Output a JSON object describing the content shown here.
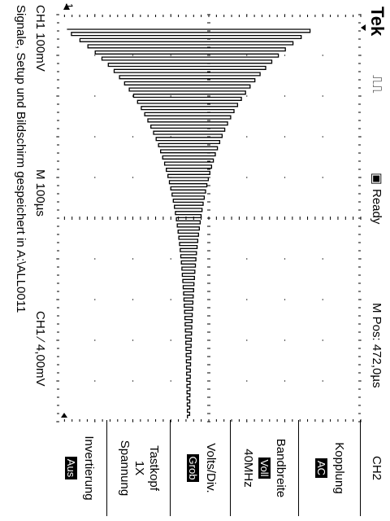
{
  "status": {
    "brand": "Tek",
    "state": "Ready",
    "mpos": "M Pos: 472,0µs"
  },
  "footer": {
    "ch1_scale": "CH1  100mV",
    "timebase": "M 100µs",
    "trigger": "CH1  ∕  4,00mV",
    "message": "Signale, Setup und Bildschirm gespeichert in A:\\ALL0011"
  },
  "menu": {
    "title": "CH2",
    "kopplung_label": "Kopplung",
    "kopplung_value": "AC",
    "bandbreite_label": "Bandbreite",
    "bandbreite_value": "Voll",
    "bandbreite_sub": "40MHz",
    "volts_label": "Volts/Div.",
    "volts_value": "Grob",
    "tastkopf_label": "Tastkopf",
    "tastkopf_value": "1X",
    "tastkopf_sub": "Spannung",
    "invert_label": "Invertierung",
    "invert_value": "Aus"
  },
  "markers": {
    "ch1": "1"
  },
  "icons": [
    "trigger-level-arrow-icon",
    "trigger-position-arrow-icon",
    "acquisition-icon",
    "ready-square-icon"
  ],
  "trace": {
    "periods": 63,
    "amplitude_start": 0.8,
    "decay": 0.009
  }
}
